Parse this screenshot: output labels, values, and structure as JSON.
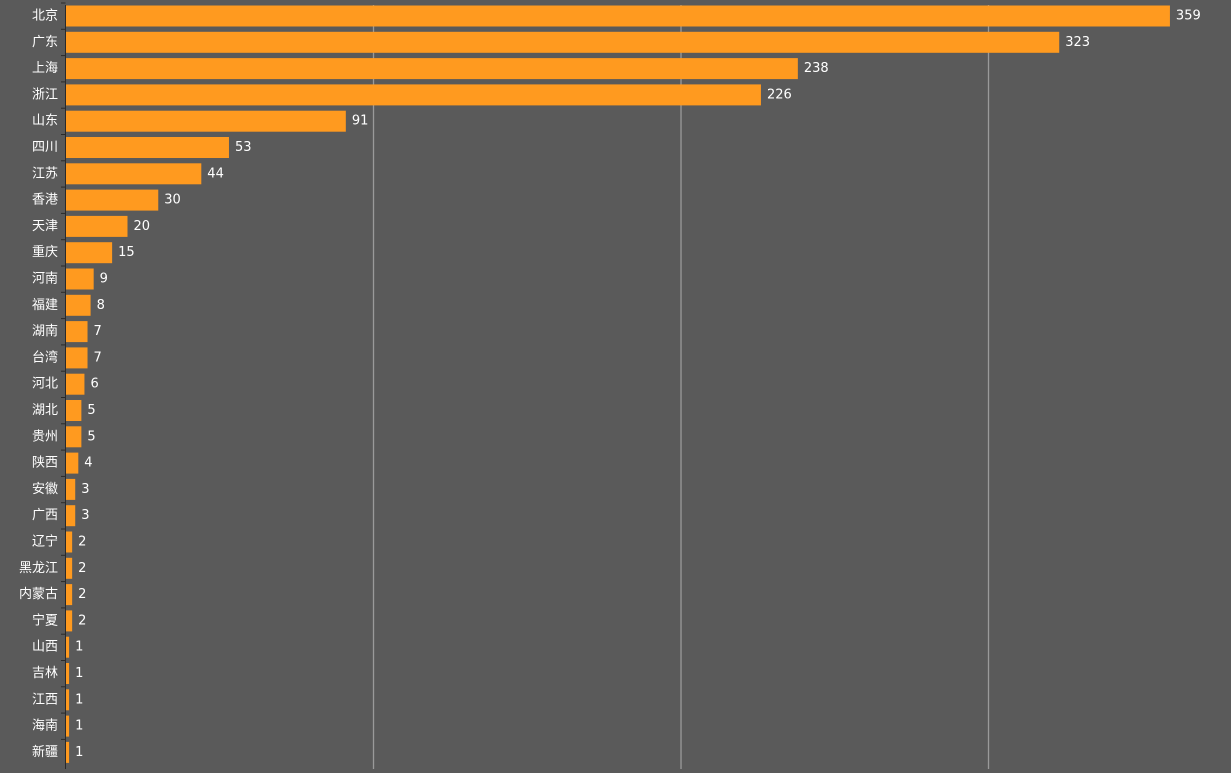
{
  "colors": {
    "background": "#5a5a5a",
    "bar": "#ff9a1f",
    "grid": "#9a9a9a",
    "axis": "#2a2a2a",
    "label": "#ffffff"
  },
  "chart_data": {
    "type": "bar",
    "orientation": "horizontal",
    "title": "",
    "xlabel": "",
    "ylabel": "",
    "xlim": [
      0,
      400
    ],
    "grid": true,
    "legend": "none",
    "categories": [
      "北京",
      "广东",
      "上海",
      "浙江",
      "山东",
      "四川",
      "江苏",
      "香港",
      "天津",
      "重庆",
      "河南",
      "福建",
      "湖南",
      "台湾",
      "河北",
      "湖北",
      "贵州",
      "陕西",
      "安徽",
      "广西",
      "辽宁",
      "黑龙江",
      "内蒙古",
      "宁夏",
      "山西",
      "吉林",
      "江西",
      "海南",
      "新疆"
    ],
    "values": [
      359,
      323,
      238,
      226,
      91,
      53,
      44,
      30,
      20,
      15,
      9,
      8,
      7,
      7,
      6,
      5,
      5,
      4,
      3,
      3,
      2,
      2,
      2,
      2,
      1,
      1,
      1,
      1,
      1
    ]
  }
}
